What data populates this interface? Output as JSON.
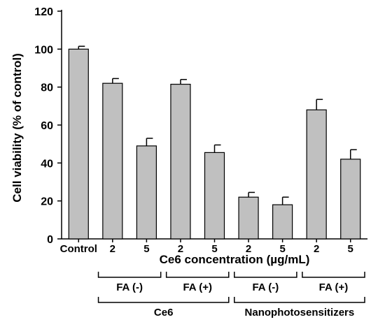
{
  "chart_data": {
    "type": "bar",
    "categories": [
      "Control",
      "2",
      "5",
      "2",
      "5",
      "2",
      "5",
      "2",
      "5"
    ],
    "values": [
      100,
      82,
      49,
      81.5,
      45.5,
      22,
      18,
      68,
      42
    ],
    "errors": [
      1.5,
      2.5,
      4,
      2.5,
      4,
      2.5,
      4,
      5.5,
      5
    ],
    "ylabel": "Cell viability (% of control)",
    "xlabel": "Ce6 concentration (µg/mL)",
    "ylim": [
      0,
      120
    ],
    "yticks": [
      0,
      20,
      40,
      60,
      80,
      100,
      120
    ],
    "bar_color": "#c0c0c0",
    "grid": false,
    "groups_level1": [
      {
        "label": "FA (-)",
        "categories": [
          1,
          2
        ]
      },
      {
        "label": "FA (+)",
        "categories": [
          3,
          4
        ]
      },
      {
        "label": "FA (-)",
        "categories": [
          5,
          6
        ]
      },
      {
        "label": "FA (+)",
        "categories": [
          7,
          8
        ]
      }
    ],
    "groups_level2": [
      {
        "label": "Ce6",
        "categories": [
          1,
          4
        ]
      },
      {
        "label": "Nanophotosensitizers",
        "categories": [
          5,
          8
        ]
      }
    ]
  }
}
